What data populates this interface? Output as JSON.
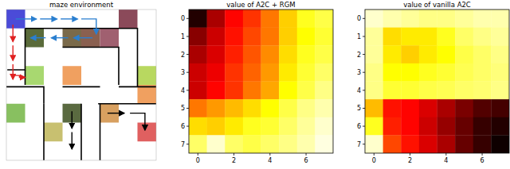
{
  "chart_data": [
    {
      "type": "maze",
      "title": "maze environment",
      "rows": 8,
      "cols": 8,
      "cells": [
        {
          "row": 0,
          "col": 0,
          "color": "#4b4bd8"
        },
        {
          "row": 0,
          "col": 6,
          "color": "#8b4a5a"
        },
        {
          "row": 1,
          "col": 1,
          "color": "#5a6b3a"
        },
        {
          "row": 1,
          "col": 3,
          "color": "#7a6a4a"
        },
        {
          "row": 1,
          "col": 4,
          "color": "#8a6050"
        },
        {
          "row": 1,
          "col": 5,
          "color": "#a06070"
        },
        {
          "row": 3,
          "col": 1,
          "color": "#a8d870"
        },
        {
          "row": 3,
          "col": 3,
          "color": "#f0a060"
        },
        {
          "row": 3,
          "col": 7,
          "color": "#b8d860"
        },
        {
          "row": 4,
          "col": 7,
          "color": "#f0a060"
        },
        {
          "row": 5,
          "col": 0,
          "color": "#88c060"
        },
        {
          "row": 5,
          "col": 3,
          "color": "#5a6a40"
        },
        {
          "row": 5,
          "col": 5,
          "color": "#d8a060"
        },
        {
          "row": 6,
          "col": 2,
          "color": "#c8c070"
        },
        {
          "row": 6,
          "col": 7,
          "color": "#e06060"
        }
      ]
    },
    {
      "type": "heatmap",
      "title": "value of A2C + RGM",
      "xlim": [
        -0.5,
        7.5
      ],
      "ylim": [
        7.5,
        -0.5
      ],
      "xticks": [
        0,
        2,
        4,
        6
      ],
      "yticks": [
        0,
        1,
        2,
        3,
        4,
        5,
        6,
        7
      ],
      "color_range": [
        0,
        1
      ],
      "cells": [
        [
          0.05,
          0.25,
          0.38,
          0.45,
          0.55,
          0.68,
          0.78,
          0.82
        ],
        [
          0.2,
          0.3,
          0.4,
          0.48,
          0.55,
          0.68,
          0.75,
          0.8
        ],
        [
          0.25,
          0.32,
          0.42,
          0.5,
          0.58,
          0.7,
          0.78,
          0.82
        ],
        [
          0.3,
          0.35,
          0.45,
          0.52,
          0.6,
          0.72,
          0.8,
          0.85
        ],
        [
          0.3,
          0.38,
          0.45,
          0.55,
          0.62,
          0.75,
          0.82,
          0.88
        ],
        [
          0.55,
          0.6,
          0.65,
          0.7,
          0.75,
          0.82,
          0.88,
          0.92
        ],
        [
          0.7,
          0.68,
          0.72,
          0.78,
          0.8,
          0.85,
          0.9,
          0.95
        ],
        [
          0.85,
          0.95,
          0.85,
          0.82,
          0.85,
          0.88,
          0.92,
          0.97
        ]
      ]
    },
    {
      "type": "heatmap",
      "title": "value of vanilla A2C",
      "xlim": [
        -0.5,
        7.5
      ],
      "ylim": [
        7.5,
        -0.5
      ],
      "xticks": [
        0,
        2,
        4,
        6
      ],
      "yticks": [
        0,
        1,
        2,
        3,
        4,
        5,
        6,
        7
      ],
      "color_range": [
        0,
        1
      ],
      "cells": [
        [
          0.95,
          0.92,
          0.9,
          0.88,
          0.88,
          0.9,
          0.92,
          0.92
        ],
        [
          0.9,
          0.7,
          0.72,
          0.72,
          0.78,
          0.85,
          0.88,
          0.9
        ],
        [
          0.9,
          0.72,
          0.68,
          0.72,
          0.75,
          0.82,
          0.85,
          0.88
        ],
        [
          0.88,
          0.75,
          0.75,
          0.78,
          0.8,
          0.83,
          0.85,
          0.87
        ],
        [
          0.88,
          0.8,
          0.8,
          0.82,
          0.83,
          0.85,
          0.86,
          0.88
        ],
        [
          0.65,
          0.4,
          0.38,
          0.32,
          0.25,
          0.18,
          0.12,
          0.1
        ],
        [
          0.78,
          0.42,
          0.38,
          0.3,
          0.22,
          0.15,
          0.08,
          0.05
        ],
        [
          0.95,
          0.48,
          0.4,
          0.32,
          0.25,
          0.15,
          0.08,
          0.02
        ]
      ]
    }
  ]
}
